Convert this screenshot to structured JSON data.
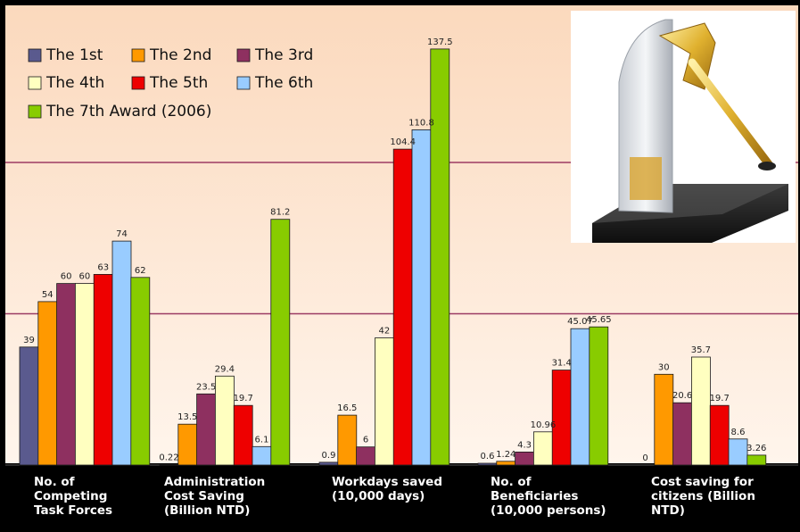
{
  "chart_data": {
    "type": "bar",
    "categories": [
      [
        "No. of",
        "Competing",
        "Task Forces"
      ],
      [
        "Administration",
        "Cost Saving",
        "(Billion NTD)"
      ],
      [
        "Workdays saved",
        "(10,000 days)"
      ],
      [
        "No. of",
        "Beneficiaries",
        "(10,000 persons)"
      ],
      [
        "Cost saving for",
        "citizens (Billion",
        "NTD)"
      ]
    ],
    "series": [
      {
        "name": "The 1st",
        "color": "#5a5a8e",
        "values": [
          39,
          0.22,
          0.9,
          0.6,
          0
        ],
        "labels": [
          "39",
          "0.22",
          "0.9",
          "0.6",
          "0"
        ]
      },
      {
        "name": "The 2nd",
        "color": "#ff9900",
        "values": [
          54,
          13.5,
          16.5,
          1.24,
          30
        ],
        "labels": [
          "54",
          "13.5",
          "16.5",
          "1.24",
          "30"
        ]
      },
      {
        "name": "The 3rd",
        "color": "#8e3060",
        "values": [
          60,
          23.5,
          6,
          4.3,
          20.6
        ],
        "labels": [
          "60",
          "23.5",
          "6",
          "4.3",
          "20.6"
        ]
      },
      {
        "name": "The 4th",
        "color": "#ffffc0",
        "values": [
          60,
          29.4,
          42,
          10.96,
          35.7
        ],
        "labels": [
          "60",
          "29.4",
          "42",
          "10.96",
          "35.7"
        ]
      },
      {
        "name": "The 5th",
        "color": "#ee0000",
        "values": [
          63,
          19.7,
          104.4,
          31.4,
          19.7
        ],
        "labels": [
          "63",
          "19.7",
          "104.4",
          "31.4",
          "19.7"
        ]
      },
      {
        "name": "The 6th",
        "color": "#99ccff",
        "values": [
          74,
          6.1,
          110.8,
          45.07,
          8.6
        ],
        "labels": [
          "74",
          "6.1",
          "110.8",
          "45.07",
          "8.6"
        ]
      },
      {
        "name": "The 7th Award (2006)",
        "color": "#88cc00",
        "values": [
          62,
          81.2,
          137.5,
          45.65,
          3.26
        ],
        "labels": [
          "62",
          "81.2",
          "137.5",
          "45.65",
          "3.26"
        ]
      }
    ],
    "ylim": [
      0,
      140
    ],
    "grid": true,
    "legend_position": "top-left",
    "background_colors": {
      "plot_top": "#fbd9bd",
      "plot_bottom": "#fff5ec",
      "gridline": "#9b3b63"
    }
  }
}
